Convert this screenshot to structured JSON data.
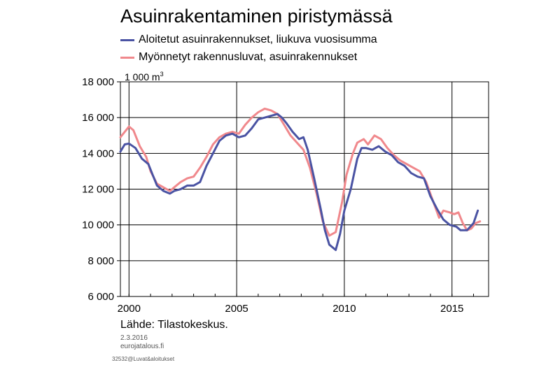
{
  "title": "Asuinrakentaminen piristymässä",
  "unit_label": "1 000 m",
  "unit_sup": "3",
  "source": "Lähde: Tilastokeskus.",
  "date": "2.3.2016",
  "site": "eurojatalous.fi",
  "file_id": "32532@Luvat&aloitukset",
  "chart_data": {
    "type": "line",
    "title": "Asuinrakentaminen piristymässä",
    "xlabel": "",
    "ylabel": "1 000 m3",
    "xlim": [
      1999.6,
      2016.7
    ],
    "ylim": [
      6000,
      18000
    ],
    "x_ticks": [
      2000,
      2005,
      2010,
      2015
    ],
    "x_tick_labels": [
      "2000",
      "2005",
      "2010",
      "2015"
    ],
    "y_ticks": [
      6000,
      8000,
      10000,
      12000,
      14000,
      16000,
      18000
    ],
    "y_tick_labels": [
      "6 000",
      "8 000",
      "10 000",
      "12 000",
      "14 000",
      "16 000",
      "18 000"
    ],
    "grid": true,
    "legend_position": "top",
    "series": [
      {
        "name": "Aloitetut asuinrakennukset, liukuva vuosisumma",
        "color": "#4a53a3",
        "points": [
          [
            1999.6,
            14100
          ],
          [
            1999.8,
            14500
          ],
          [
            2000.0,
            14550
          ],
          [
            2000.3,
            14300
          ],
          [
            2000.6,
            13700
          ],
          [
            2000.9,
            13400
          ],
          [
            2001.1,
            12800
          ],
          [
            2001.3,
            12200
          ],
          [
            2001.6,
            11900
          ],
          [
            2001.9,
            11750
          ],
          [
            2002.1,
            11900
          ],
          [
            2002.4,
            12000
          ],
          [
            2002.7,
            12200
          ],
          [
            2003.0,
            12200
          ],
          [
            2003.3,
            12400
          ],
          [
            2003.6,
            13300
          ],
          [
            2003.9,
            14000
          ],
          [
            2004.2,
            14700
          ],
          [
            2004.5,
            15000
          ],
          [
            2004.8,
            15100
          ],
          [
            2005.1,
            14900
          ],
          [
            2005.4,
            15000
          ],
          [
            2005.7,
            15400
          ],
          [
            2006.0,
            15900
          ],
          [
            2006.3,
            16000
          ],
          [
            2006.6,
            16100
          ],
          [
            2006.9,
            16200
          ],
          [
            2007.1,
            16000
          ],
          [
            2007.3,
            15700
          ],
          [
            2007.6,
            15200
          ],
          [
            2007.9,
            14800
          ],
          [
            2008.1,
            14900
          ],
          [
            2008.3,
            14200
          ],
          [
            2008.6,
            12600
          ],
          [
            2008.9,
            10900
          ],
          [
            2009.1,
            9700
          ],
          [
            2009.3,
            8900
          ],
          [
            2009.6,
            8600
          ],
          [
            2009.8,
            9500
          ],
          [
            2010.0,
            10800
          ],
          [
            2010.3,
            12000
          ],
          [
            2010.6,
            13700
          ],
          [
            2010.8,
            14300
          ],
          [
            2011.0,
            14300
          ],
          [
            2011.3,
            14200
          ],
          [
            2011.6,
            14400
          ],
          [
            2011.9,
            14100
          ],
          [
            2012.2,
            13900
          ],
          [
            2012.5,
            13500
          ],
          [
            2012.8,
            13300
          ],
          [
            2013.1,
            12900
          ],
          [
            2013.4,
            12700
          ],
          [
            2013.7,
            12600
          ],
          [
            2014.0,
            11600
          ],
          [
            2014.3,
            10900
          ],
          [
            2014.6,
            10300
          ],
          [
            2014.9,
            10000
          ],
          [
            2015.2,
            9900
          ],
          [
            2015.4,
            9700
          ],
          [
            2015.7,
            9700
          ],
          [
            2016.0,
            10100
          ],
          [
            2016.2,
            10800
          ]
        ]
      },
      {
        "name": "Myönnetyt rakennusluvat, asuinrakennukset",
        "color": "#f0888c",
        "points": [
          [
            1999.6,
            14900
          ],
          [
            1999.8,
            15200
          ],
          [
            2000.0,
            15500
          ],
          [
            2000.2,
            15300
          ],
          [
            2000.5,
            14400
          ],
          [
            2000.8,
            13800
          ],
          [
            2001.0,
            13000
          ],
          [
            2001.3,
            12300
          ],
          [
            2001.6,
            12100
          ],
          [
            2001.9,
            11900
          ],
          [
            2002.1,
            12100
          ],
          [
            2002.4,
            12400
          ],
          [
            2002.7,
            12600
          ],
          [
            2003.0,
            12700
          ],
          [
            2003.3,
            13200
          ],
          [
            2003.6,
            13800
          ],
          [
            2003.9,
            14500
          ],
          [
            2004.2,
            14900
          ],
          [
            2004.5,
            15100
          ],
          [
            2004.8,
            15200
          ],
          [
            2005.1,
            15100
          ],
          [
            2005.4,
            15600
          ],
          [
            2005.7,
            16000
          ],
          [
            2006.0,
            16300
          ],
          [
            2006.3,
            16500
          ],
          [
            2006.6,
            16400
          ],
          [
            2006.9,
            16200
          ],
          [
            2007.2,
            15600
          ],
          [
            2007.5,
            15000
          ],
          [
            2007.8,
            14600
          ],
          [
            2008.1,
            14200
          ],
          [
            2008.4,
            13200
          ],
          [
            2008.7,
            11800
          ],
          [
            2009.0,
            10200
          ],
          [
            2009.3,
            9400
          ],
          [
            2009.6,
            9600
          ],
          [
            2009.9,
            11300
          ],
          [
            2010.1,
            12800
          ],
          [
            2010.4,
            14000
          ],
          [
            2010.6,
            14600
          ],
          [
            2010.9,
            14800
          ],
          [
            2011.1,
            14500
          ],
          [
            2011.4,
            15000
          ],
          [
            2011.7,
            14800
          ],
          [
            2012.0,
            14300
          ],
          [
            2012.3,
            13900
          ],
          [
            2012.6,
            13600
          ],
          [
            2012.9,
            13400
          ],
          [
            2013.2,
            13200
          ],
          [
            2013.5,
            13000
          ],
          [
            2013.8,
            12400
          ],
          [
            2014.1,
            11400
          ],
          [
            2014.4,
            10400
          ],
          [
            2014.6,
            10800
          ],
          [
            2014.9,
            10700
          ],
          [
            2015.1,
            10600
          ],
          [
            2015.3,
            10700
          ],
          [
            2015.5,
            10100
          ],
          [
            2015.7,
            9700
          ],
          [
            2015.9,
            9800
          ],
          [
            2016.1,
            10100
          ],
          [
            2016.3,
            10200
          ]
        ]
      }
    ]
  }
}
